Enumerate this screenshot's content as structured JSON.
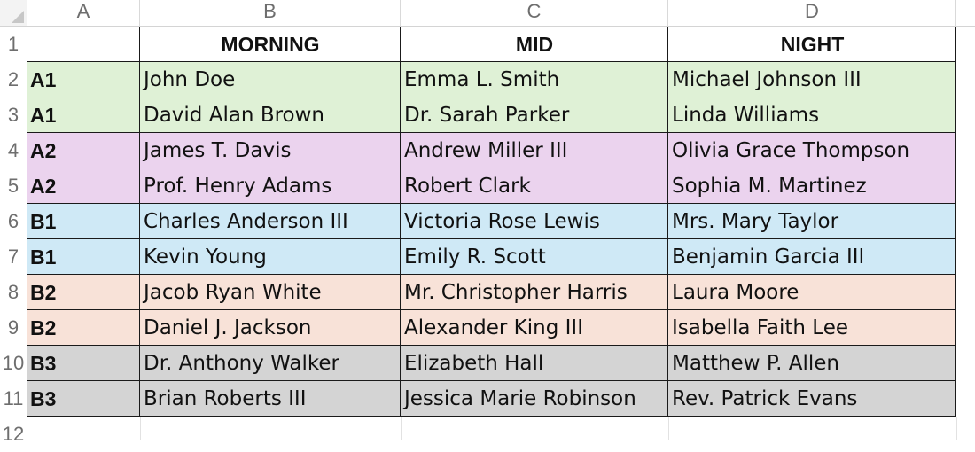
{
  "columns": [
    "A",
    "B",
    "C",
    "D"
  ],
  "row_numbers": [
    "1",
    "2",
    "3",
    "4",
    "5",
    "6",
    "7",
    "8",
    "9",
    "10",
    "11",
    "12"
  ],
  "colors": {
    "A1": "#dff1d6",
    "A2": "#ebd3ee",
    "B1": "#cfe9f6",
    "B2": "#f8e2d8",
    "B3": "#d4d4d4"
  },
  "header": {
    "morning": "MORNING",
    "mid": "MID",
    "night": "NIGHT"
  },
  "rows": [
    {
      "group": "A1",
      "morning": "John Doe",
      "mid": "Emma L. Smith",
      "night": "Michael Johnson III"
    },
    {
      "group": "A1",
      "morning": "David Alan Brown",
      "mid": "Dr. Sarah Parker",
      "night": "Linda Williams"
    },
    {
      "group": "A2",
      "morning": "James T. Davis",
      "mid": "Andrew Miller III",
      "night": "Olivia Grace Thompson"
    },
    {
      "group": "A2",
      "morning": "Prof. Henry Adams",
      "mid": "Robert Clark",
      "night": "Sophia M. Martinez"
    },
    {
      "group": "B1",
      "morning": "Charles Anderson III",
      "mid": "Victoria Rose Lewis",
      "night": "Mrs. Mary Taylor"
    },
    {
      "group": "B1",
      "morning": "Kevin Young",
      "mid": "Emily R. Scott",
      "night": "Benjamin Garcia III"
    },
    {
      "group": "B2",
      "morning": "Jacob Ryan White",
      "mid": "Mr. Christopher Harris",
      "night": "Laura Moore"
    },
    {
      "group": "B2",
      "morning": "Daniel J. Jackson",
      "mid": "Alexander King III",
      "night": "Isabella Faith Lee"
    },
    {
      "group": "B3",
      "morning": "Dr. Anthony Walker",
      "mid": "Elizabeth Hall",
      "night": "Matthew P. Allen"
    },
    {
      "group": "B3",
      "morning": "Brian Roberts III",
      "mid": "Jessica Marie Robinson",
      "night": "Rev. Patrick Evans"
    }
  ]
}
